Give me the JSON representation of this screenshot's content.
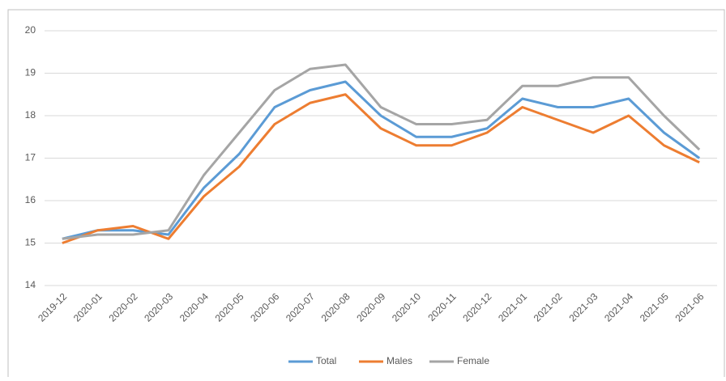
{
  "chart_data": {
    "type": "line",
    "categories": [
      "2019-12",
      "2020-01",
      "2020-02",
      "2020-03",
      "2020-04",
      "2020-05",
      "2020-06",
      "2020-07",
      "2020-08",
      "2020-09",
      "2020-10",
      "2020-11",
      "2020-12",
      "2021-01",
      "2021-02",
      "2021-03",
      "2021-04",
      "2021-05",
      "2021-06"
    ],
    "series": [
      {
        "name": "Total",
        "color": "#5b9bd5",
        "values": [
          15.1,
          15.3,
          15.3,
          15.2,
          16.3,
          17.1,
          18.2,
          18.6,
          18.8,
          18.0,
          17.5,
          17.5,
          17.7,
          18.4,
          18.2,
          18.2,
          18.4,
          17.6,
          17.0
        ]
      },
      {
        "name": "Males",
        "color": "#ed7d31",
        "values": [
          15.0,
          15.3,
          15.4,
          15.1,
          16.1,
          16.8,
          17.8,
          18.3,
          18.5,
          17.7,
          17.3,
          17.3,
          17.6,
          18.2,
          17.9,
          17.6,
          18.0,
          17.3,
          16.9
        ]
      },
      {
        "name": "Female",
        "color": "#a5a5a5",
        "values": [
          15.1,
          15.2,
          15.2,
          15.3,
          16.6,
          17.6,
          18.6,
          19.1,
          19.2,
          18.2,
          17.8,
          17.8,
          17.9,
          18.7,
          18.7,
          18.9,
          18.9,
          18.0,
          17.2
        ]
      }
    ],
    "ylim": [
      14,
      20
    ],
    "yticks": [
      14,
      15,
      16,
      17,
      18,
      19,
      20
    ],
    "grid": true,
    "legend": "bottom"
  }
}
